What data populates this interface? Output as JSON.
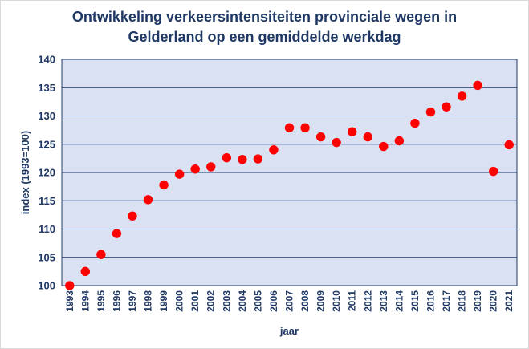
{
  "chart_data": {
    "type": "scatter",
    "title_lines": [
      "Ontwikkeling verkeersintensiteiten provinciale wegen in",
      "Gelderland op een gemiddelde werkdag"
    ],
    "xlabel": "jaar",
    "ylabel": "index (1993=100)",
    "ylim": [
      100,
      140
    ],
    "yticks": [
      100,
      105,
      110,
      115,
      120,
      125,
      130,
      135,
      140
    ],
    "grid": true,
    "legend": "none",
    "x": [
      "1993",
      "1994",
      "1995",
      "1996",
      "1997",
      "1998",
      "1999",
      "2000",
      "2001",
      "2002",
      "2003",
      "2004",
      "2005",
      "2006",
      "2007",
      "2008",
      "2009",
      "2010",
      "2011",
      "2012",
      "2013",
      "2014",
      "2015",
      "2016",
      "2017",
      "2018",
      "2019",
      "2020",
      "2021"
    ],
    "y": [
      100.0,
      102.5,
      105.5,
      109.2,
      112.3,
      115.2,
      117.8,
      119.7,
      120.6,
      121.0,
      122.6,
      122.3,
      122.4,
      124.0,
      127.9,
      127.9,
      126.3,
      125.3,
      127.2,
      126.3,
      124.6,
      125.6,
      128.7,
      130.7,
      131.6,
      133.5,
      135.4,
      120.2,
      124.9
    ],
    "colors": {
      "plot_background": "#d9e1f2",
      "gridline": "#1f3864",
      "marker": "#ff0000",
      "text": "#1f3864"
    }
  }
}
